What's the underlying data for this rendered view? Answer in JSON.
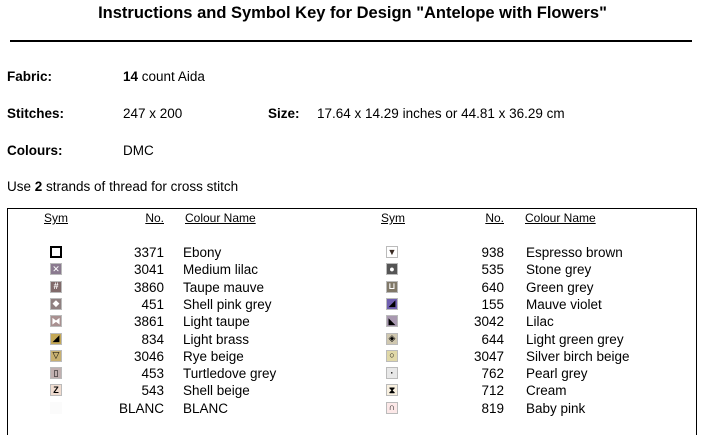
{
  "title": "Instructions and Symbol Key for Design \"Antelope with Flowers\"",
  "fabric": {
    "label": "Fabric:",
    "count": "14",
    "suffix": " count Aida"
  },
  "stitches": {
    "label": "Stitches:",
    "value": "247 x 200"
  },
  "size": {
    "label": "Size:",
    "value": "17.64 x 14.29 inches or 44.81 x 36.29 cm"
  },
  "colours": {
    "label": "Colours:",
    "value": "DMC"
  },
  "instruction": {
    "prefix": "Use ",
    "count": "2",
    "suffix": " strands of thread for cross stitch"
  },
  "headers": {
    "sym": "Sym",
    "no": "No.",
    "name": "Colour Name"
  },
  "left": [
    {
      "no": "3371",
      "name": "Ebony",
      "bg": "#ffffff",
      "glyph": "",
      "glyph_color": "#000000",
      "shape": "open-square"
    },
    {
      "no": "3041",
      "name": "Medium lilac",
      "bg": "#8a7a8f",
      "glyph": "✕",
      "glyph_color": "#ffffff",
      "shape": "x"
    },
    {
      "no": "3860",
      "name": "Taupe mauve",
      "bg": "#806a6a",
      "glyph": "#",
      "glyph_color": "#ffffff",
      "shape": "hash"
    },
    {
      "no": "451",
      "name": "Shell pink grey",
      "bg": "#8f8080",
      "glyph": "◆",
      "glyph_color": "#ffffff",
      "shape": "diamond"
    },
    {
      "no": "3861",
      "name": "Light taupe",
      "bg": "#a89090",
      "glyph": "⧓",
      "glyph_color": "#ffffff",
      "shape": "bowtie"
    },
    {
      "no": "834",
      "name": "Light brass",
      "bg": "#c4a857",
      "glyph": "◢",
      "glyph_color": "#000000",
      "shape": "triangle"
    },
    {
      "no": "3046",
      "name": "Rye beige",
      "bg": "#c8b070",
      "glyph": "▽",
      "glyph_color": "#000000",
      "shape": "down-triangle"
    },
    {
      "no": "453",
      "name": "Turtledove grey",
      "bg": "#c0b0b0",
      "glyph": "▯",
      "glyph_color": "#000000",
      "shape": "rect"
    },
    {
      "no": "543",
      "name": "Shell beige",
      "bg": "#f0dcd0",
      "glyph": "Z",
      "glyph_color": "#000000",
      "shape": "z"
    },
    {
      "no": "BLANC",
      "name": "BLANC",
      "bg": "#fbfbfb",
      "glyph": "",
      "glyph_color": "#000000",
      "shape": "blank"
    }
  ],
  "right": [
    {
      "no": "938",
      "name": "Espresso brown",
      "bg": "#ffffff",
      "glyph": "▼",
      "glyph_color": "#3a2a22",
      "shape": "down-triangle"
    },
    {
      "no": "535",
      "name": "Stone grey",
      "bg": "#555555",
      "glyph": "●",
      "glyph_color": "#ffffff",
      "shape": "circle"
    },
    {
      "no": "640",
      "name": "Green grey",
      "bg": "#807868",
      "glyph": "⊔",
      "glyph_color": "#ffffff",
      "shape": "cup"
    },
    {
      "no": "155",
      "name": "Mauve violet",
      "bg": "#7060b0",
      "glyph": "◢",
      "glyph_color": "#000000",
      "shape": "triangle"
    },
    {
      "no": "3042",
      "name": "Lilac",
      "bg": "#a898b0",
      "glyph": "◣",
      "glyph_color": "#000000",
      "shape": "triangle"
    },
    {
      "no": "644",
      "name": "Light green grey",
      "bg": "#d0c8b0",
      "glyph": "◈",
      "glyph_color": "#000000",
      "shape": "diamond"
    },
    {
      "no": "3047",
      "name": "Silver birch beige",
      "bg": "#e0d8a8",
      "glyph": "○",
      "glyph_color": "#000000",
      "shape": "circle"
    },
    {
      "no": "762",
      "name": "Pearl grey",
      "bg": "#e8e8e8",
      "glyph": "·",
      "glyph_color": "#000000",
      "shape": "dot"
    },
    {
      "no": "712",
      "name": "Cream",
      "bg": "#f8f0e0",
      "glyph": "⧗",
      "glyph_color": "#000000",
      "shape": "hourglass"
    },
    {
      "no": "819",
      "name": "Baby pink",
      "bg": "#fce8e8",
      "glyph": "∩",
      "glyph_color": "#000000",
      "shape": "arch"
    }
  ]
}
